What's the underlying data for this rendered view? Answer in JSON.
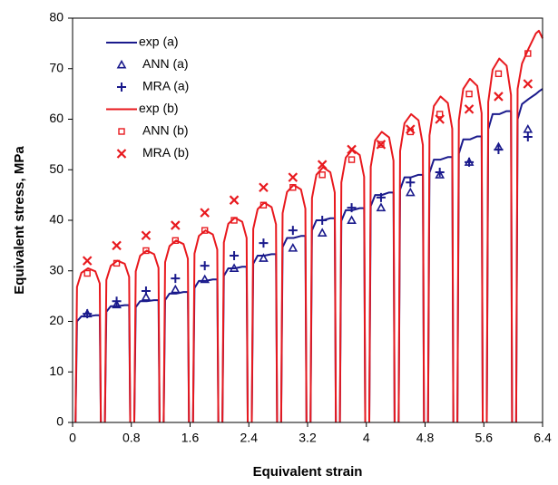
{
  "chart_data": {
    "type": "line",
    "x_label": "Equivalent strain",
    "y_label": "Equivalent stress, MPa",
    "xlim": [
      0,
      6.4
    ],
    "ylim": [
      0,
      80
    ],
    "xticks": [
      0,
      0.8,
      1.6,
      2.4,
      3.2,
      4,
      4.8,
      5.6,
      6.4
    ],
    "yticks": [
      0,
      10,
      20,
      30,
      40,
      50,
      60,
      70,
      80
    ],
    "legend": "upper left",
    "x": [
      0.04,
      0.06,
      0.12,
      0.21,
      0.31,
      0.37,
      0.385,
      0.39,
      0.44,
      0.46,
      0.52,
      0.61,
      0.71,
      0.77,
      0.785,
      0.79,
      0.84,
      0.86,
      0.92,
      1.01,
      1.11,
      1.17,
      1.185,
      1.19,
      1.24,
      1.26,
      1.32,
      1.41,
      1.51,
      1.57,
      1.585,
      1.59,
      1.64,
      1.66,
      1.72,
      1.81,
      1.91,
      1.97,
      1.985,
      1.99,
      2.04,
      2.06,
      2.12,
      2.21,
      2.31,
      2.37,
      2.385,
      2.39,
      2.44,
      2.46,
      2.52,
      2.61,
      2.71,
      2.77,
      2.785,
      2.79,
      2.84,
      2.86,
      2.92,
      3.01,
      3.11,
      3.17,
      3.185,
      3.19,
      3.24,
      3.26,
      3.32,
      3.41,
      3.51,
      3.57,
      3.585,
      3.59,
      3.64,
      3.66,
      3.72,
      3.81,
      3.91,
      3.97,
      3.985,
      3.99,
      4.04,
      4.06,
      4.12,
      4.21,
      4.31,
      4.37,
      4.385,
      4.39,
      4.44,
      4.46,
      4.52,
      4.61,
      4.71,
      4.77,
      4.785,
      4.79,
      4.84,
      4.86,
      4.92,
      5.01,
      5.11,
      5.17,
      5.185,
      5.19,
      5.24,
      5.26,
      5.32,
      5.41,
      5.51,
      5.57,
      5.585,
      5.59,
      5.64,
      5.66,
      5.72,
      5.81,
      5.91,
      5.97,
      5.985,
      5.99,
      6.04,
      6.06,
      6.12,
      6.21,
      6.31,
      6.35,
      6.4
    ],
    "series": [
      {
        "name": "exp (a)",
        "color": "#1a1a8c",
        "marker": "line",
        "values": [
          0,
          20,
          21,
          21,
          21.2,
          21.2,
          0,
          null,
          0,
          21.9,
          23,
          23,
          23.2,
          23.2,
          0,
          null,
          0,
          22.8,
          24,
          24,
          24.2,
          24.2,
          0,
          null,
          0,
          24.2,
          25.5,
          25.5,
          25.8,
          25.8,
          0,
          null,
          0,
          26.6,
          28,
          28,
          28.3,
          28.3,
          0,
          null,
          0,
          29,
          30.5,
          30.5,
          30.8,
          30.8,
          0,
          null,
          0,
          31.4,
          33,
          33,
          33.3,
          33.3,
          0,
          null,
          0,
          34.7,
          36.5,
          36.5,
          36.9,
          36.9,
          0,
          null,
          0,
          38,
          40,
          40,
          40.4,
          40.4,
          0,
          null,
          0,
          39.9,
          42,
          42,
          42.4,
          42.4,
          0,
          null,
          0,
          42.8,
          45,
          45,
          45.5,
          45.5,
          0,
          null,
          0,
          46.1,
          48.5,
          48.5,
          49,
          49,
          0,
          null,
          0,
          49.4,
          52,
          52,
          52.5,
          52.5,
          0,
          null,
          0,
          53.2,
          56,
          56,
          56.6,
          56.6,
          0,
          null,
          0,
          58,
          61,
          61,
          61.6,
          61.6,
          0,
          null,
          0,
          60,
          63,
          64,
          65,
          65.5,
          66
        ]
      },
      {
        "name": "ANN (a)",
        "color": "#1a1a8c",
        "marker": "triangle",
        "x": [
          0.2,
          0.6,
          1,
          1.4,
          1.8,
          2.2,
          2.6,
          3,
          3.4,
          3.8,
          4.2,
          4.6,
          5,
          5.4,
          5.8,
          6.2
        ],
        "values": [
          21.5,
          23.3,
          24.8,
          26.3,
          28.3,
          30.5,
          32.5,
          34.5,
          37.5,
          40,
          42.5,
          45.5,
          49,
          51.5,
          54.5,
          58
        ]
      },
      {
        "name": "MRA (a)",
        "color": "#1a1a8c",
        "marker": "plus",
        "x": [
          0.2,
          0.6,
          1,
          1.4,
          1.8,
          2.2,
          2.6,
          3,
          3.4,
          3.8,
          4.2,
          4.6,
          5,
          5.4,
          5.8,
          6.2
        ],
        "values": [
          21.5,
          24,
          26,
          28.5,
          31,
          33,
          35.5,
          38,
          40,
          42.5,
          44.5,
          47.5,
          49.5,
          51.5,
          54,
          56.5
        ]
      },
      {
        "name": "exp (b)",
        "color": "#e8191e",
        "marker": "line",
        "values": [
          0,
          26.8,
          29.6,
          30.5,
          29.9,
          27.5,
          0,
          null,
          0,
          28.2,
          31,
          32,
          31.4,
          28.8,
          0,
          null,
          0,
          29.9,
          33,
          34,
          33.3,
          30.6,
          0,
          null,
          0,
          31.7,
          34.9,
          36,
          35.3,
          32.4,
          0,
          null,
          0,
          33.4,
          36.9,
          38,
          37.2,
          34.2,
          0,
          null,
          0,
          35.6,
          39.3,
          40.5,
          39.7,
          36.5,
          0,
          null,
          0,
          38.3,
          42.2,
          43.5,
          42.6,
          39.2,
          0,
          null,
          0,
          41.4,
          45.6,
          47,
          46.1,
          42.3,
          0,
          null,
          0,
          44.4,
          49,
          50.5,
          49.5,
          45.5,
          0,
          null,
          0,
          47.5,
          52.4,
          54,
          52.9,
          48.6,
          0,
          null,
          0,
          50.6,
          55.8,
          57.5,
          56.4,
          51.8,
          0,
          null,
          0,
          53.7,
          59.2,
          61,
          59.8,
          54.9,
          0,
          null,
          0,
          56.8,
          62.6,
          64.5,
          63.2,
          58.1,
          0,
          null,
          0,
          59.8,
          66,
          68,
          66.6,
          61.2,
          0,
          null,
          0,
          63.4,
          69.8,
          72,
          70.6,
          64.8,
          0,
          null,
          0,
          66,
          71,
          74,
          77,
          77.5,
          76
        ]
      },
      {
        "name": "ANN (b)",
        "color": "#e8191e",
        "marker": "square",
        "x": [
          0.2,
          0.6,
          1,
          1.4,
          1.8,
          2.2,
          2.6,
          3,
          3.4,
          3.8,
          4.2,
          4.6,
          5,
          5.4,
          5.8,
          6.2
        ],
        "values": [
          29.5,
          31.5,
          34,
          36,
          38,
          40,
          43,
          46.5,
          49,
          52,
          55,
          57.5,
          61,
          65,
          69,
          73
        ]
      },
      {
        "name": "MRA (b)",
        "color": "#e8191e",
        "marker": "cross",
        "x": [
          0.2,
          0.6,
          1,
          1.4,
          1.8,
          2.2,
          2.6,
          3,
          3.4,
          3.8,
          4.2,
          4.6,
          5,
          5.4,
          5.8,
          6.2
        ],
        "values": [
          32,
          35,
          37,
          39,
          41.5,
          44,
          46.5,
          48.5,
          51,
          54,
          55,
          58,
          60,
          62,
          64.5,
          67
        ]
      }
    ]
  }
}
